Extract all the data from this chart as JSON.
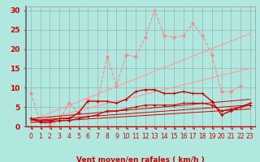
{
  "background_color": "#b0e8e0",
  "grid_color": "#888888",
  "xlabel": "Vent moyen/en rafales ( km/h )",
  "x_ticks": [
    0,
    1,
    2,
    3,
    4,
    5,
    6,
    7,
    8,
    9,
    10,
    11,
    12,
    13,
    14,
    15,
    16,
    17,
    18,
    19,
    20,
    21,
    22,
    23
  ],
  "ylim": [
    0,
    31
  ],
  "yticks": [
    0,
    5,
    10,
    15,
    20,
    25,
    30
  ],
  "series": [
    {
      "name": "light_zigzag",
      "color": "#ff8888",
      "linewidth": 0.8,
      "marker": "D",
      "markersize": 2.0,
      "linestyle": "--",
      "x": [
        0,
        1,
        2,
        3,
        4,
        5,
        6,
        7,
        8,
        9,
        10,
        11,
        12,
        13,
        14,
        15,
        16,
        17,
        18,
        19,
        20,
        21,
        22
      ],
      "y": [
        8.5,
        1.2,
        0.3,
        1.5,
        6.0,
        3.5,
        7.0,
        6.5,
        18.0,
        10.5,
        18.5,
        18.0,
        23.0,
        30.0,
        23.5,
        23.0,
        23.5,
        26.5,
        23.5,
        18.5,
        9.0,
        9.0,
        10.5
      ]
    },
    {
      "name": "light_diag1",
      "color": "#ff9999",
      "linewidth": 0.8,
      "marker": null,
      "linestyle": "-",
      "x": [
        0,
        23
      ],
      "y": [
        1.5,
        24.0
      ]
    },
    {
      "name": "light_diag2",
      "color": "#ff9999",
      "linewidth": 0.8,
      "marker": null,
      "linestyle": "-",
      "x": [
        0,
        23
      ],
      "y": [
        1.0,
        15.0
      ]
    },
    {
      "name": "dark_main",
      "color": "#cc0000",
      "linewidth": 1.0,
      "marker": "+",
      "markersize": 3.5,
      "linestyle": "-",
      "x": [
        0,
        1,
        2,
        3,
        4,
        5,
        6,
        7,
        8,
        9,
        10,
        11,
        12,
        13,
        14,
        15,
        16,
        17,
        18,
        19,
        20,
        21,
        22,
        23
      ],
      "y": [
        2.0,
        1.5,
        1.5,
        2.0,
        2.0,
        3.5,
        6.5,
        6.5,
        6.5,
        6.0,
        7.0,
        9.0,
        9.5,
        9.5,
        8.5,
        8.5,
        9.0,
        8.5,
        8.5,
        6.5,
        3.0,
        4.0,
        5.0,
        6.0
      ]
    },
    {
      "name": "dark_flat1",
      "color": "#cc0000",
      "linewidth": 0.8,
      "marker": "+",
      "markersize": 2.5,
      "linestyle": "-",
      "x": [
        0,
        1,
        2,
        3,
        4,
        5,
        6,
        7,
        8,
        9,
        10,
        11,
        12,
        13,
        14,
        15,
        16,
        17,
        18,
        19,
        20,
        21,
        22,
        23
      ],
      "y": [
        2.0,
        1.0,
        1.0,
        1.5,
        1.5,
        2.0,
        2.5,
        3.0,
        4.0,
        4.0,
        4.5,
        5.0,
        5.5,
        5.5,
        5.5,
        5.5,
        6.0,
        6.0,
        6.0,
        5.5,
        4.0,
        4.5,
        5.0,
        5.5
      ]
    },
    {
      "name": "dark_diag1",
      "color": "#cc0000",
      "linewidth": 0.7,
      "marker": null,
      "linestyle": "-",
      "x": [
        0,
        23
      ],
      "y": [
        2.0,
        7.0
      ]
    },
    {
      "name": "dark_diag2",
      "color": "#cc0000",
      "linewidth": 0.7,
      "marker": null,
      "linestyle": "-",
      "x": [
        0,
        23
      ],
      "y": [
        1.5,
        5.5
      ]
    },
    {
      "name": "dark_diag3",
      "color": "#cc0000",
      "linewidth": 0.7,
      "marker": null,
      "linestyle": "-",
      "x": [
        0,
        23
      ],
      "y": [
        1.0,
        4.5
      ]
    }
  ],
  "arrow_color": "#cc0000",
  "text_color": "#cc0000",
  "label_fontsize": 6.5,
  "tick_fontsize": 5.5
}
